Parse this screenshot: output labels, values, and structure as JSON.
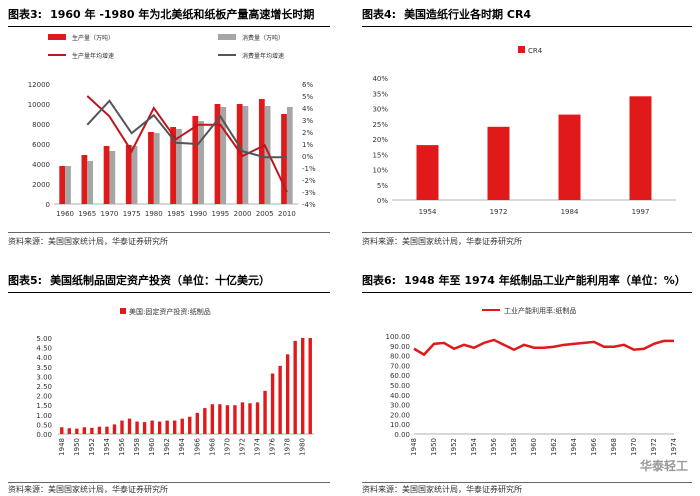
{
  "watermark": "华泰轻工",
  "panels": [
    {
      "label": "图表3:",
      "title": "1960 年 -1980 年为北美纸和纸板产量高速增长时期",
      "source": "资料来源：美国国家统计局，华泰证券研究所"
    },
    {
      "label": "图表4:",
      "title": "美国造纸行业各时期 CR4",
      "source": "资料来源：美国国家统计局，华泰证券研究所"
    },
    {
      "label": "图表5:",
      "title": "美国纸制品固定资产投资（单位：十亿美元）",
      "source": "资料来源：美国国家统计局，华泰证券研究所"
    },
    {
      "label": "图表6:",
      "title": "1948 年至 1974 年纸制品工业产能利用率（单位：%）",
      "source": "资料来源：美国国家统计局，华泰证券研究所"
    }
  ],
  "chart_data": [
    {
      "type": "bar",
      "categories": [
        "1960",
        "1965",
        "1970",
        "1975",
        "1980",
        "1985",
        "1990",
        "1995",
        "2000",
        "2005",
        "2010"
      ],
      "series": [
        {
          "name": "生产量（万吨）",
          "kind": "bar",
          "axis": "left",
          "color": "#e0191a",
          "values": [
            3800,
            4900,
            5800,
            5900,
            7200,
            7700,
            8800,
            10000,
            10000,
            10500,
            9000
          ]
        },
        {
          "name": "消费量（万吨）",
          "kind": "bar",
          "axis": "left",
          "color": "#a6a6a6",
          "values": [
            3800,
            4300,
            5300,
            5800,
            7100,
            7500,
            8300,
            9700,
            9800,
            9800,
            9700
          ]
        },
        {
          "name": "生产量年均增速",
          "kind": "line",
          "axis": "right",
          "color": "#c0161b",
          "values": [
            null,
            5.0,
            3.3,
            0.4,
            4.0,
            1.4,
            2.6,
            2.6,
            0.0,
            0.9,
            -3.0
          ]
        },
        {
          "name": "消费量年均增速",
          "kind": "line",
          "axis": "right",
          "color": "#555555",
          "values": [
            null,
            2.6,
            4.6,
            1.9,
            3.4,
            1.1,
            1.0,
            3.3,
            0.4,
            -0.1,
            -0.1
          ]
        }
      ],
      "ylim_left": [
        0,
        12000
      ],
      "yticks_left": [
        "0",
        "2000",
        "4000",
        "6000",
        "8000",
        "10000",
        "12000"
      ],
      "ylim_right": [
        -4,
        6
      ],
      "yticks_right": [
        "-4%",
        "-3%",
        "-2%",
        "-1%",
        "0%",
        "1%",
        "2%",
        "3%",
        "4%",
        "5%",
        "6%"
      ],
      "legend_position": "top"
    },
    {
      "type": "bar",
      "categories": [
        "1954",
        "1972",
        "1984",
        "1997"
      ],
      "series": [
        {
          "name": "CR4",
          "color": "#e0191a",
          "values": [
            18,
            24,
            28,
            34
          ]
        }
      ],
      "ylim": [
        0,
        40
      ],
      "yticks": [
        "0%",
        "5%",
        "10%",
        "15%",
        "20%",
        "25%",
        "30%",
        "35%",
        "40%"
      ],
      "legend_position": "top"
    },
    {
      "type": "bar",
      "categories": [
        "1948",
        "1949",
        "1950",
        "1951",
        "1952",
        "1953",
        "1954",
        "1955",
        "1956",
        "1957",
        "1958",
        "1959",
        "1960",
        "1961",
        "1962",
        "1963",
        "1964",
        "1965",
        "1966",
        "1967",
        "1968",
        "1969",
        "1970",
        "1971",
        "1972",
        "1973",
        "1974",
        "1975",
        "1976",
        "1977",
        "1978",
        "1979",
        "1980",
        "1981"
      ],
      "tick_labels": [
        "1948",
        "1950",
        "1952",
        "1954",
        "1956",
        "1958",
        "1960",
        "1962",
        "1964",
        "1966",
        "1968",
        "1970",
        "1972",
        "1974",
        "1976",
        "1978",
        "1980"
      ],
      "series": [
        {
          "name": "美国:固定资产投资:纸制品",
          "color": "#e0191a",
          "values": [
            0.35,
            0.3,
            0.28,
            0.35,
            0.32,
            0.38,
            0.38,
            0.5,
            0.7,
            0.8,
            0.65,
            0.62,
            0.7,
            0.65,
            0.7,
            0.7,
            0.8,
            0.9,
            1.1,
            1.35,
            1.55,
            1.55,
            1.5,
            1.5,
            1.65,
            1.6,
            1.65,
            2.25,
            3.15,
            3.55,
            4.15,
            4.85,
            5.0,
            5.0
          ]
        }
      ],
      "ylim": [
        0,
        5
      ],
      "yticks": [
        "0.00",
        "0.50",
        "1.00",
        "1.50",
        "2.00",
        "2.50",
        "3.00",
        "3.50",
        "4.00",
        "4.50",
        "5.00"
      ],
      "legend_position": "top"
    },
    {
      "type": "line",
      "x": [
        "1948",
        "1949",
        "1950",
        "1951",
        "1952",
        "1953",
        "1954",
        "1955",
        "1956",
        "1957",
        "1958",
        "1959",
        "1960",
        "1961",
        "1962",
        "1963",
        "1964",
        "1965",
        "1966",
        "1967",
        "1968",
        "1969",
        "1970",
        "1971",
        "1972",
        "1973",
        "1974"
      ],
      "tick_labels": [
        "1948",
        "1950",
        "1952",
        "1954",
        "1956",
        "1958",
        "1960",
        "1962",
        "1964",
        "1966",
        "1968",
        "1970",
        "1972",
        "1974"
      ],
      "series": [
        {
          "name": "工业产能利用率:纸制品",
          "color": "#e0191a",
          "values": [
            87,
            81,
            92,
            93,
            87,
            91,
            88,
            93,
            96,
            91,
            86,
            91,
            88,
            88,
            89,
            91,
            92,
            93,
            94,
            89,
            89,
            91,
            86,
            87,
            92,
            95,
            95
          ]
        }
      ],
      "ylim": [
        0,
        100
      ],
      "yticks": [
        "0.00",
        "10.00",
        "20.00",
        "30.00",
        "40.00",
        "50.00",
        "60.00",
        "70.00",
        "80.00",
        "90.00",
        "100.00"
      ],
      "legend_position": "top"
    }
  ]
}
